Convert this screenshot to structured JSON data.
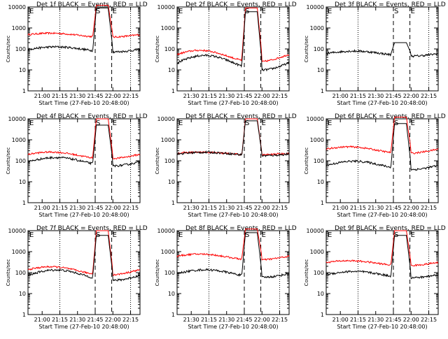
{
  "chart_data": {
    "type": "line",
    "scale": "log",
    "ylim": [
      1,
      10000
    ],
    "y_tick_labels": [
      "1",
      "10",
      "100",
      "1000",
      "10000"
    ],
    "ylabel": "Counts/sec",
    "xlabel": "Start Time (27-Feb-10 20:48:00)",
    "time_start_minutes": 0,
    "x_tick_labels_type_a": [
      "21:00",
      "21:15",
      "21:30",
      "21:45",
      "22:00",
      "22:15"
    ],
    "x_tick_labels_type_b": [
      "21:30",
      "21:15",
      "21:30",
      "21:45",
      "22:00",
      "22:15"
    ],
    "marker_labels": [
      "E",
      "S",
      "E"
    ],
    "series_colors": {
      "events": "#000000",
      "lld": "#ff0000"
    },
    "panels": [
      {
        "title": "Det 1f BLACK = Events, RED = LLD",
        "ticks": "a",
        "events_base": 95,
        "lld_base": 450,
        "events_peak": 9000,
        "lld_peak": 12000,
        "wave_amp": 0.12,
        "has_red": true
      },
      {
        "title": "Det 2f BLACK = Events, RED = LLD",
        "ticks": "b",
        "events_base": 22,
        "lld_base": 45,
        "events_peak": 6000,
        "lld_peak": 9000,
        "wave_amp": 0.35,
        "has_red": true
      },
      {
        "title": "Det 3f BLACK = Events, RED = LLD",
        "ticks": "a",
        "events_base": 60,
        "lld_base": 0,
        "events_peak": 200,
        "lld_peak": 0,
        "wave_amp": 0.12,
        "has_red": false
      },
      {
        "title": "Det 4f BLACK = Events, RED = LLD",
        "ticks": "a",
        "events_base": 90,
        "lld_base": 180,
        "events_peak": 5000,
        "lld_peak": 10000,
        "wave_amp": 0.2,
        "has_red": true
      },
      {
        "title": "Det 5f BLACK = Events, RED = LLD",
        "ticks": "b",
        "events_base": 210,
        "lld_base": 220,
        "events_peak": 8000,
        "lld_peak": 10000,
        "wave_amp": 0.08,
        "has_red": true
      },
      {
        "title": "Det 6f BLACK = Events, RED = LLD",
        "ticks": "a",
        "events_base": 60,
        "lld_base": 320,
        "events_peak": 6000,
        "lld_peak": 12000,
        "wave_amp": 0.2,
        "has_red": true
      },
      {
        "title": "Det 7f BLACK = Events, RED = LLD",
        "ticks": "a",
        "events_base": 75,
        "lld_base": 120,
        "events_peak": 6000,
        "lld_peak": 10000,
        "wave_amp": 0.25,
        "has_red": true
      },
      {
        "title": "Det 8f BLACK = Events, RED = LLD",
        "ticks": "b",
        "events_base": 90,
        "lld_base": 550,
        "events_peak": 8000,
        "lld_peak": 12000,
        "wave_amp": 0.18,
        "has_red": true
      },
      {
        "title": "Det 9f BLACK = Events, RED = LLD",
        "ticks": "a",
        "events_base": 80,
        "lld_base": 280,
        "events_peak": 6000,
        "lld_peak": 10000,
        "wave_amp": 0.15,
        "has_red": true
      }
    ]
  }
}
